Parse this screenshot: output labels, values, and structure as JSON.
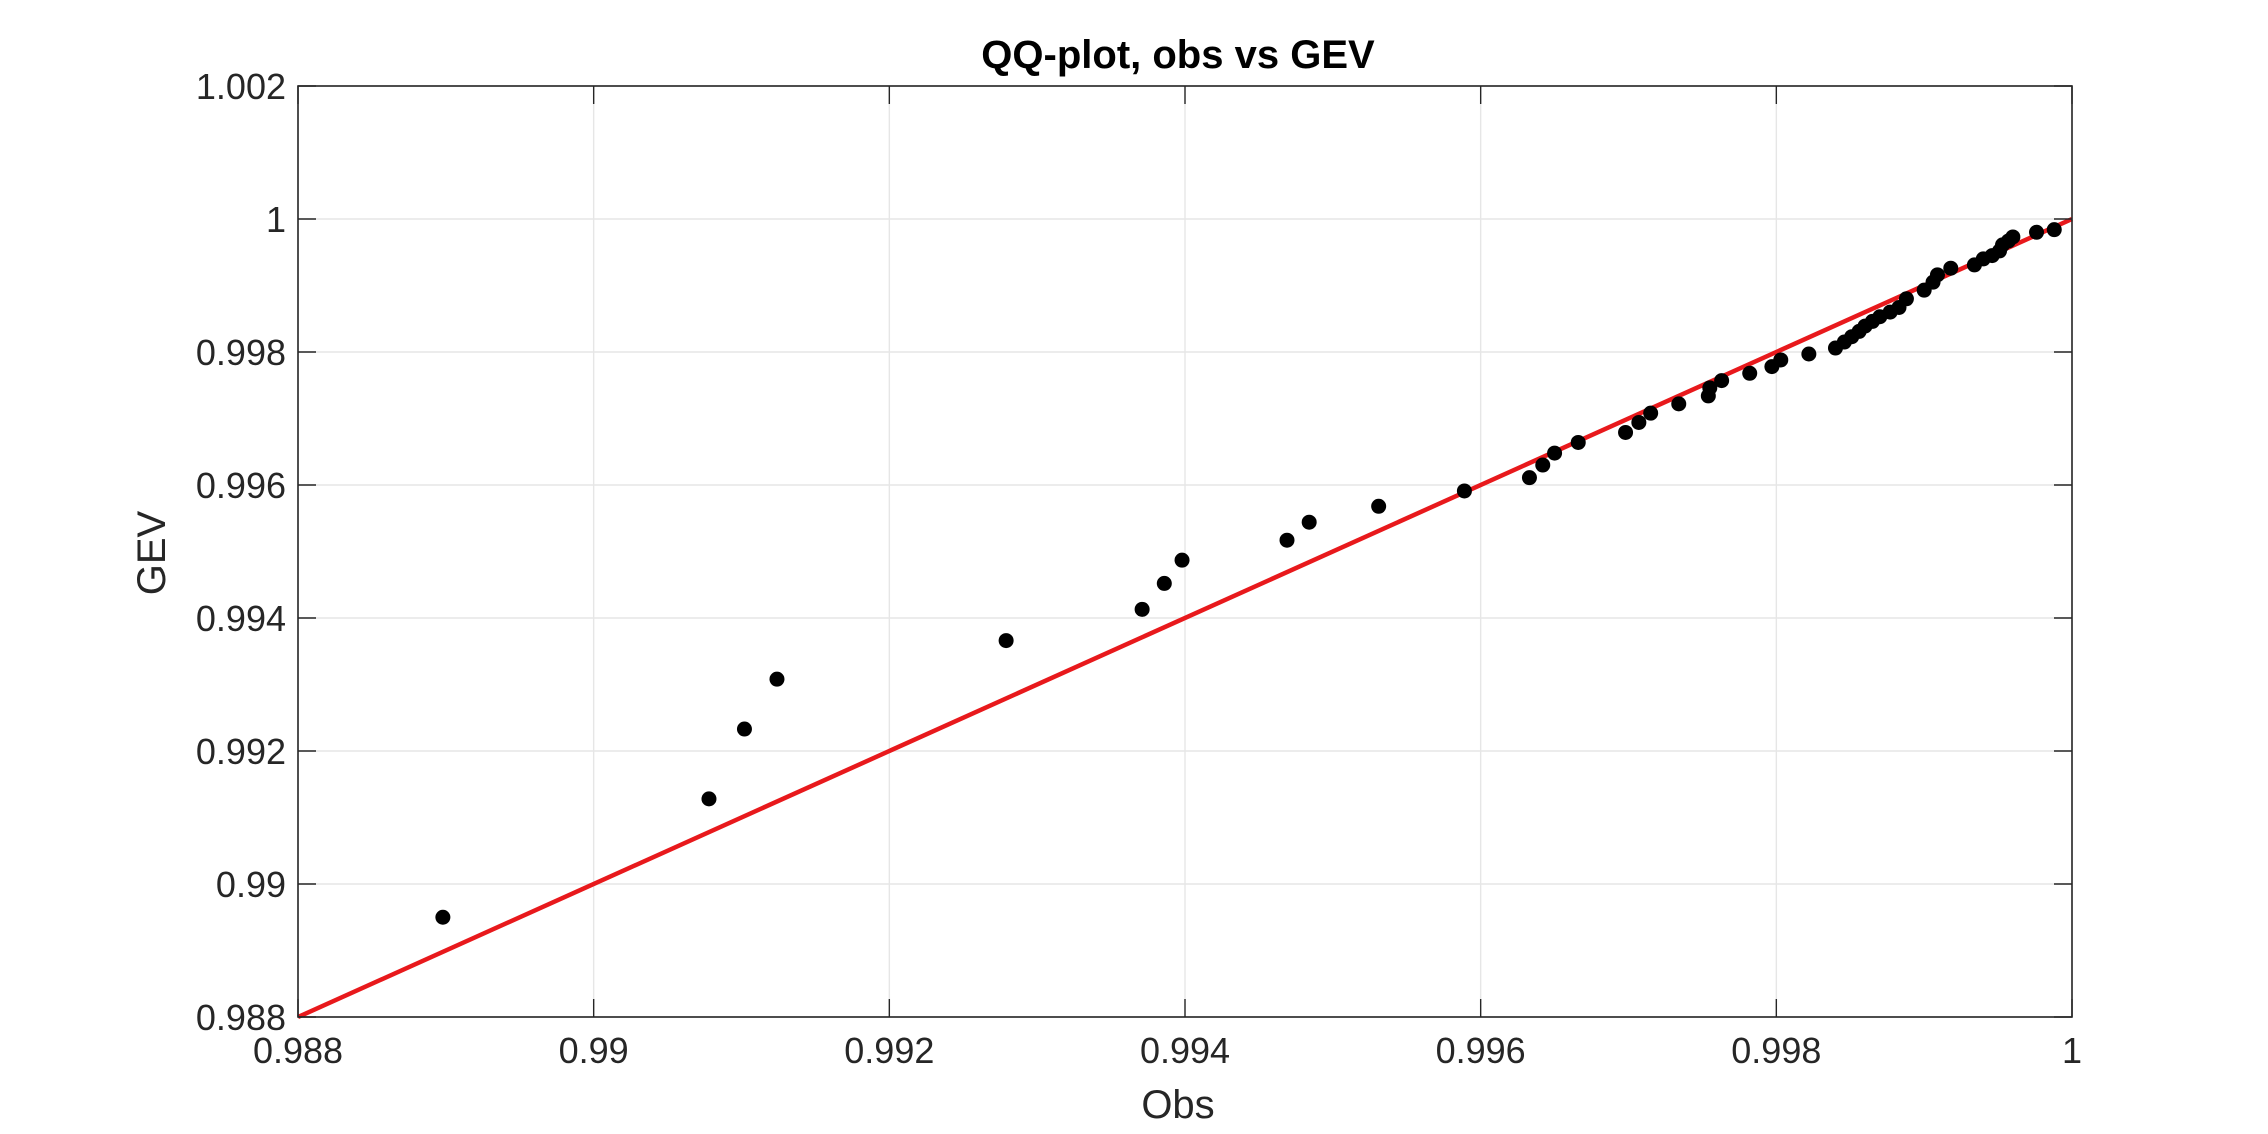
{
  "chart_data": {
    "type": "scatter",
    "title": "QQ-plot, obs vs GEV",
    "xlabel": "Obs",
    "ylabel": "GEV",
    "xlim": [
      0.988,
      1.0
    ],
    "ylim": [
      0.988,
      1.002
    ],
    "xticks": [
      0.988,
      0.99,
      0.992,
      0.994,
      0.996,
      0.998,
      1.0
    ],
    "xtick_labels": [
      "0.988",
      "0.99",
      "0.992",
      "0.994",
      "0.996",
      "0.998",
      "1"
    ],
    "yticks": [
      0.988,
      0.99,
      0.992,
      0.994,
      0.996,
      0.998,
      1.0,
      1.002
    ],
    "ytick_labels": [
      "0.988",
      "0.99",
      "0.992",
      "0.994",
      "0.996",
      "0.998",
      "1",
      "1.002"
    ],
    "grid": true,
    "colors": {
      "points": "#000000",
      "reference_line": "#e8191c",
      "grid": "#e6e6e6",
      "axes": "#262626"
    },
    "reference_line": {
      "x": [
        0.988,
        1.0
      ],
      "y": [
        0.988,
        1.0
      ]
    },
    "points": {
      "x": [
        0.98898,
        0.99078,
        0.99102,
        0.99124,
        0.99279,
        0.99371,
        0.99386,
        0.99398,
        0.99469,
        0.99484,
        0.99531,
        0.99589,
        0.99633,
        0.99642,
        0.9965,
        0.99666,
        0.99698,
        0.99707,
        0.99715,
        0.99734,
        0.99754,
        0.99755,
        0.99763,
        0.99782,
        0.99797,
        0.99803,
        0.99822,
        0.9984,
        0.99846,
        0.99851,
        0.99856,
        0.9986,
        0.99865,
        0.9987,
        0.99877,
        0.99883,
        0.99888,
        0.999,
        0.99906,
        0.99909,
        0.99918,
        0.99934,
        0.9994,
        0.99946,
        0.99951,
        0.99953,
        0.99957,
        0.9996,
        0.99976,
        0.99988
      ],
      "y": [
        0.9895,
        0.99128,
        0.99233,
        0.99308,
        0.99366,
        0.99413,
        0.99452,
        0.99487,
        0.99517,
        0.99544,
        0.99568,
        0.99591,
        0.99611,
        0.9963,
        0.99648,
        0.99664,
        0.99679,
        0.99694,
        0.99708,
        0.99722,
        0.99734,
        0.99746,
        0.99757,
        0.99768,
        0.99778,
        0.99788,
        0.99797,
        0.99806,
        0.99815,
        0.99823,
        0.99831,
        0.99839,
        0.99846,
        0.99853,
        0.9986,
        0.99867,
        0.9988,
        0.99893,
        0.99905,
        0.99916,
        0.99926,
        0.99931,
        0.9994,
        0.99945,
        0.99952,
        0.99961,
        0.99967,
        0.99973,
        0.9998,
        0.99984
      ]
    }
  }
}
